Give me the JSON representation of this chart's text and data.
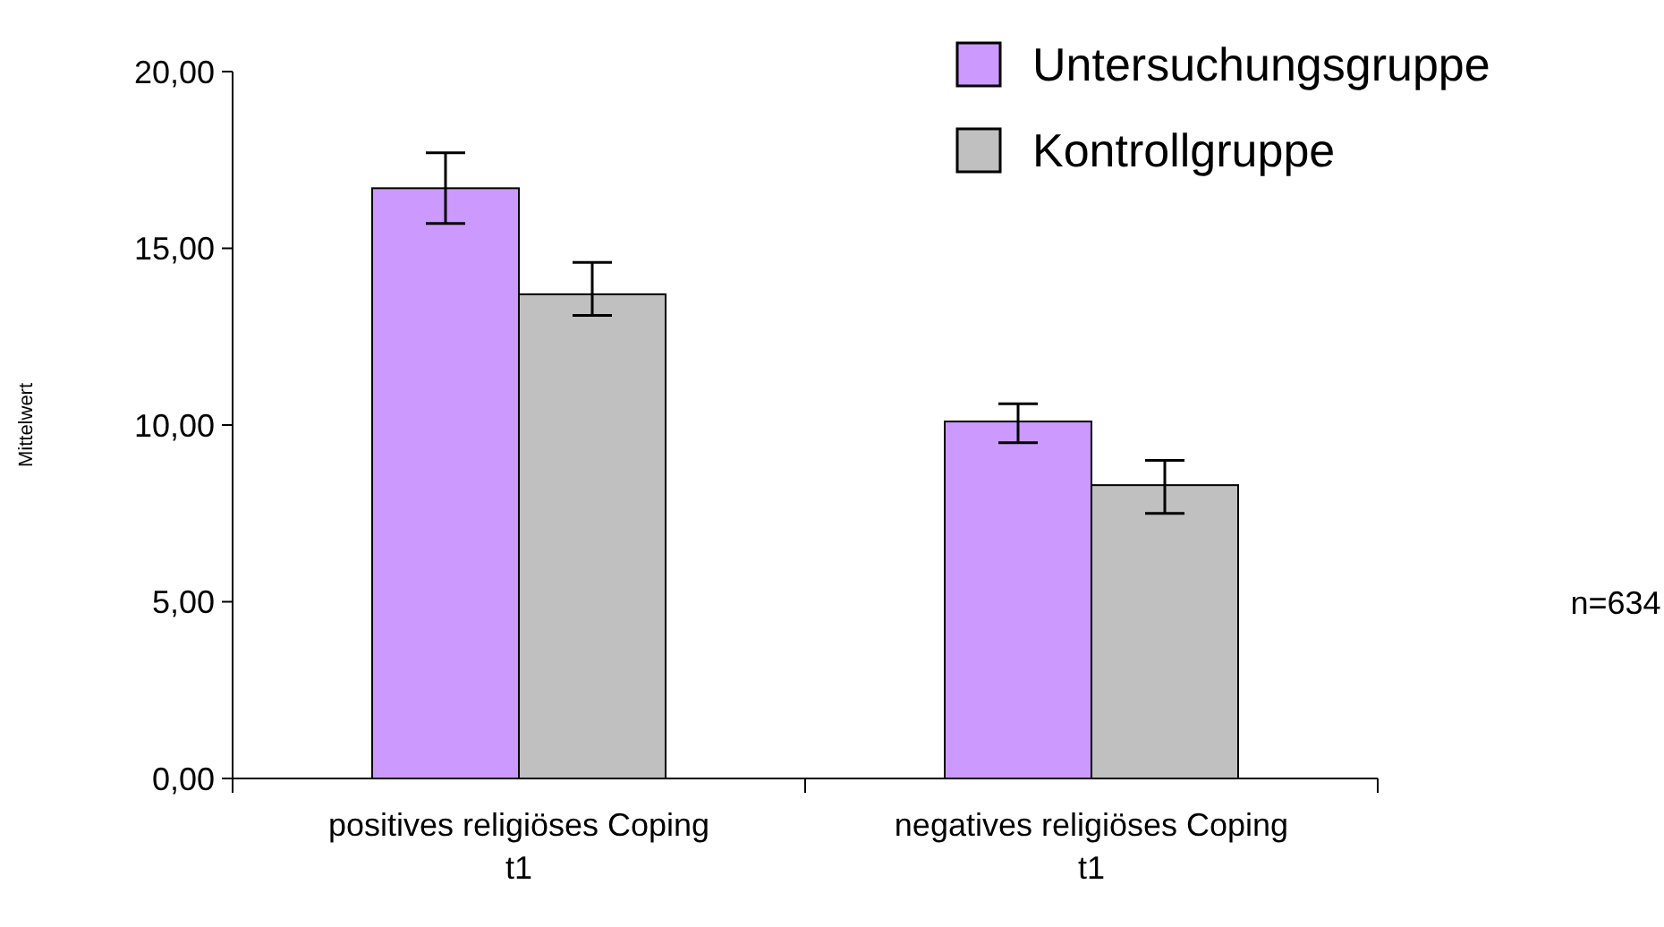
{
  "chart_data": {
    "type": "bar",
    "ylabel": "Mittelwert",
    "categories": [
      "positives religiöses Coping t1",
      "negatives religiöses Coping t1"
    ],
    "series": [
      {
        "name": "Untersuchungsgruppe",
        "color": "#cc99ff",
        "values": [
          16.7,
          10.1
        ],
        "errors": [
          [
            15.7,
            17.7
          ],
          [
            9.5,
            10.6
          ]
        ]
      },
      {
        "name": "Kontrollgruppe",
        "color": "#c0c0c0",
        "values": [
          13.7,
          8.3
        ],
        "errors": [
          [
            13.1,
            14.6
          ],
          [
            7.5,
            9.0
          ]
        ]
      }
    ],
    "ylim": [
      0,
      20
    ],
    "yticks": [
      {
        "value": 0,
        "label": "0,00"
      },
      {
        "value": 5,
        "label": "5,00"
      },
      {
        "value": 10,
        "label": "10,00"
      },
      {
        "value": 15,
        "label": "15,00"
      },
      {
        "value": 20,
        "label": "20,00"
      }
    ],
    "legend": "top right",
    "annotations": [
      "n=634"
    ]
  }
}
